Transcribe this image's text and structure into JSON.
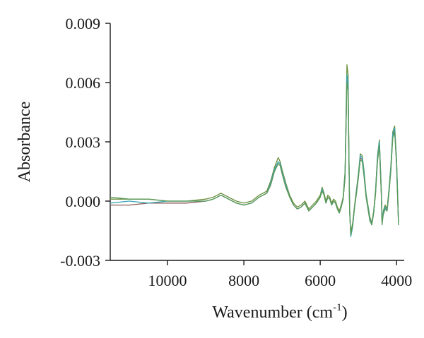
{
  "chart_data": {
    "type": "line",
    "title": "",
    "xlabel": "Wavenumber (cm",
    "xlabel_superscript": "-1",
    "xlabel_suffix": ")",
    "ylabel": "Absorbance",
    "x_reversed": true,
    "xlim": [
      11500,
      3800
    ],
    "ylim": [
      -0.003,
      0.009
    ],
    "x_ticks": [
      10000,
      8000,
      6000,
      4000
    ],
    "x_tick_labels": [
      "10000",
      "8000",
      "6000",
      "4000"
    ],
    "y_ticks": [
      -0.003,
      0.0,
      0.003,
      0.006,
      0.009
    ],
    "y_tick_labels": [
      "-0.003",
      "0.000",
      "0.003",
      "0.006",
      "0.009"
    ],
    "grid": false,
    "legend": "none",
    "x": [
      11500,
      11000,
      10500,
      10000,
      9500,
      9000,
      8800,
      8600,
      8400,
      8200,
      8000,
      7800,
      7600,
      7400,
      7300,
      7200,
      7100,
      7050,
      7000,
      6900,
      6800,
      6700,
      6600,
      6500,
      6400,
      6300,
      6200,
      6100,
      6000,
      5950,
      5900,
      5850,
      5800,
      5750,
      5700,
      5650,
      5600,
      5550,
      5500,
      5450,
      5400,
      5350,
      5300,
      5270,
      5250,
      5230,
      5200,
      5150,
      5100,
      5050,
      5000,
      4950,
      4900,
      4850,
      4800,
      4750,
      4700,
      4650,
      4600,
      4550,
      4500,
      4450,
      4400,
      4380,
      4350,
      4300,
      4250,
      4200,
      4150,
      4100,
      4050,
      4000,
      3950
    ],
    "series": [
      {
        "color": "#8b5a5a",
        "values": [
          -0.0002,
          -0.0002,
          -0.0001,
          -0.0001,
          -0.0001,
          0.0,
          0.0001,
          0.0003,
          0.0001,
          -0.0001,
          -0.0002,
          -0.0001,
          0.0002,
          0.0004,
          0.0008,
          0.0015,
          0.0019,
          0.0018,
          0.0014,
          0.0007,
          0.0002,
          -0.0002,
          -0.0004,
          -0.0003,
          -0.0001,
          -0.0005,
          -0.0003,
          -0.0001,
          0.0002,
          0.0006,
          0.0003,
          -0.0001,
          0.0002,
          0.0001,
          -0.0002,
          0.0,
          -0.0001,
          -0.0004,
          -0.0006,
          -0.0003,
          0.0001,
          0.0012,
          0.0062,
          0.0058,
          0.0025,
          -0.0005,
          -0.0017,
          -0.0012,
          -0.0003,
          0.0004,
          0.0012,
          0.0022,
          0.0021,
          0.0013,
          0.0003,
          -0.0003,
          -0.0009,
          -0.0012,
          -0.0006,
          0.0004,
          0.0021,
          0.0029,
          0.0004,
          -0.0011,
          -0.0006,
          -0.0003,
          -0.0005,
          0.0004,
          0.0016,
          0.0033,
          0.0036,
          0.0019,
          -0.0011
        ]
      },
      {
        "color": "#6b8e3a",
        "values": [
          0.0001,
          0.0001,
          0.0001,
          0.0,
          0.0,
          0.0001,
          0.0002,
          0.0004,
          0.0002,
          0.0,
          -0.0001,
          0.0,
          0.0003,
          0.0005,
          0.001,
          0.0017,
          0.0022,
          0.002,
          0.0016,
          0.0009,
          0.0003,
          -0.0001,
          -0.0003,
          -0.0002,
          0.0,
          -0.0004,
          -0.0002,
          0.0,
          0.0003,
          0.0007,
          0.0004,
          0.0,
          0.0003,
          0.0002,
          -0.0001,
          0.0001,
          0.0,
          -0.0003,
          -0.0005,
          -0.0002,
          0.0002,
          0.0015,
          0.0069,
          0.0064,
          0.0028,
          -0.0003,
          -0.0016,
          -0.0011,
          -0.0002,
          0.0006,
          0.0014,
          0.0024,
          0.0023,
          0.0015,
          0.0004,
          -0.0002,
          -0.0008,
          -0.0011,
          -0.0005,
          0.0006,
          0.0023,
          0.0031,
          0.0006,
          -0.001,
          -0.0005,
          -0.0002,
          -0.0004,
          0.0006,
          0.0018,
          0.0035,
          0.0038,
          0.0021,
          -0.001
        ]
      },
      {
        "color": "#3aa6b4",
        "values": [
          -0.0001,
          0.0,
          -0.0001,
          0.0,
          0.0,
          0.0,
          0.0001,
          0.0003,
          0.0001,
          -0.0001,
          -0.0002,
          -0.0001,
          0.0002,
          0.0004,
          0.0009,
          0.0016,
          0.002,
          0.0019,
          0.0015,
          0.0008,
          0.0002,
          -0.0002,
          -0.0004,
          -0.0003,
          -0.0001,
          -0.0005,
          -0.0003,
          -0.0001,
          0.0002,
          0.0006,
          0.0003,
          -0.0001,
          0.0002,
          0.0001,
          -0.0002,
          0.0,
          -0.0001,
          -0.0004,
          -0.0006,
          -0.0003,
          0.0001,
          0.0013,
          0.0064,
          0.006,
          0.0026,
          -0.0004,
          -0.0018,
          -0.0013,
          -0.0003,
          0.0005,
          0.0013,
          0.0023,
          0.0022,
          0.0014,
          0.0003,
          -0.0003,
          -0.0009,
          -0.0012,
          -0.0006,
          0.0005,
          0.0022,
          0.003,
          0.0005,
          -0.0011,
          -0.0006,
          -0.0003,
          -0.0005,
          0.0005,
          0.0017,
          0.0034,
          0.0037,
          0.002,
          -0.0011
        ]
      },
      {
        "color": "#5a9a5a",
        "values": [
          0.0002,
          0.0001,
          0.0001,
          0.0,
          0.0,
          0.0,
          0.0001,
          0.0003,
          0.0001,
          -0.0001,
          -0.0002,
          -0.0001,
          0.0002,
          0.0004,
          0.0008,
          0.0015,
          0.0019,
          0.0018,
          0.0014,
          0.0007,
          0.0002,
          -0.0002,
          -0.0004,
          -0.0003,
          -0.0001,
          -0.0005,
          -0.0003,
          -0.0001,
          0.0002,
          0.0005,
          0.0003,
          -0.0001,
          0.0002,
          0.0001,
          -0.0002,
          0.0,
          -0.0001,
          -0.0004,
          -0.0006,
          -0.0003,
          0.0001,
          0.0012,
          0.006,
          0.0056,
          0.0024,
          -0.0005,
          -0.0017,
          -0.0012,
          -0.0003,
          0.0004,
          0.0012,
          0.0021,
          0.002,
          0.0012,
          0.0002,
          -0.0004,
          -0.001,
          -0.0012,
          -0.0006,
          0.0004,
          0.002,
          0.0028,
          0.0003,
          -0.0012,
          -0.0007,
          -0.0004,
          -0.0005,
          0.0004,
          0.0015,
          0.0032,
          0.0035,
          0.0018,
          -0.0012
        ]
      }
    ]
  }
}
